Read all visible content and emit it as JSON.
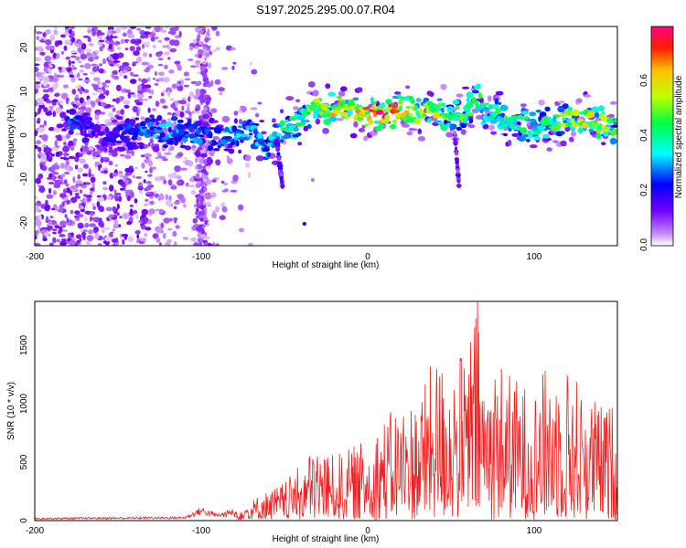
{
  "title": "S197.2025.295.00.07.R04",
  "chart_data": [
    {
      "type": "heatmap",
      "title": "S197.2025.295.00.07.R04",
      "xlabel": "Height of straight line (km)",
      "ylabel": "Frequency (Hz)",
      "xlim": [
        -200,
        150
      ],
      "ylim": [
        -25,
        25
      ],
      "xticks": [
        "-200",
        "-100",
        "0",
        "100"
      ],
      "yticks": [
        "-20",
        "-10",
        "0",
        "10",
        "20"
      ],
      "colorbar": {
        "label": "Normalized spectral amplitude",
        "range": [
          0.0,
          0.8
        ],
        "ticks": [
          "0.0",
          "0.2",
          "0.4",
          "0.6"
        ],
        "colors": [
          "#ffffff",
          "#c080ff",
          "#7000ff",
          "#0000ff",
          "#00ffff",
          "#00ff40",
          "#c0ff00",
          "#ffc000",
          "#ff2000",
          "#ff0080"
        ]
      },
      "ridge": {
        "x": [
          -175,
          -160,
          -130,
          -110,
          -90,
          -80,
          -70,
          -60,
          -50,
          -40,
          -30,
          -20,
          -10,
          0,
          10,
          20,
          30,
          40,
          50,
          60,
          65,
          70,
          80,
          90,
          100,
          110,
          120,
          130,
          140,
          150
        ],
        "y": [
          3,
          0,
          1,
          1,
          0,
          0,
          1,
          -3,
          2,
          4,
          7,
          6,
          6,
          5,
          5,
          6,
          5,
          6,
          5,
          5,
          9,
          6,
          4,
          3,
          2,
          3,
          4,
          4,
          3,
          2
        ],
        "amplitude": [
          0.25,
          0.15,
          0.3,
          0.3,
          0.25,
          0.3,
          0.35,
          0.3,
          0.4,
          0.45,
          0.55,
          0.6,
          0.6,
          0.65,
          0.75,
          0.6,
          0.5,
          0.55,
          0.45,
          0.5,
          0.45,
          0.4,
          0.45,
          0.45,
          0.4,
          0.45,
          0.5,
          0.55,
          0.5,
          0.45
        ]
      }
    },
    {
      "type": "line",
      "xlabel": "Height of straight line (km)",
      "ylabel": "SNR (10 * v/v)",
      "xlim": [
        -200,
        150
      ],
      "ylim": [
        0,
        1880
      ],
      "xticks": [
        "-200",
        "-100",
        "0",
        "100"
      ],
      "yticks": [
        "0",
        "500",
        "1000",
        "1500"
      ],
      "color": "#ee2222",
      "envelope": {
        "x": [
          -200,
          -150,
          -110,
          -100,
          -90,
          -75,
          -60,
          -50,
          -40,
          -30,
          -20,
          -10,
          0,
          10,
          20,
          30,
          40,
          50,
          60,
          65,
          70,
          80,
          90,
          100,
          110,
          120,
          130,
          140,
          150
        ],
        "y": [
          25,
          30,
          35,
          120,
          60,
          130,
          250,
          330,
          480,
          650,
          550,
          620,
          700,
          880,
          1000,
          1050,
          1400,
          1350,
          1480,
          1880,
          1320,
          1380,
          1200,
          1150,
          1380,
          1320,
          1150,
          1000,
          1000
        ]
      }
    }
  ]
}
